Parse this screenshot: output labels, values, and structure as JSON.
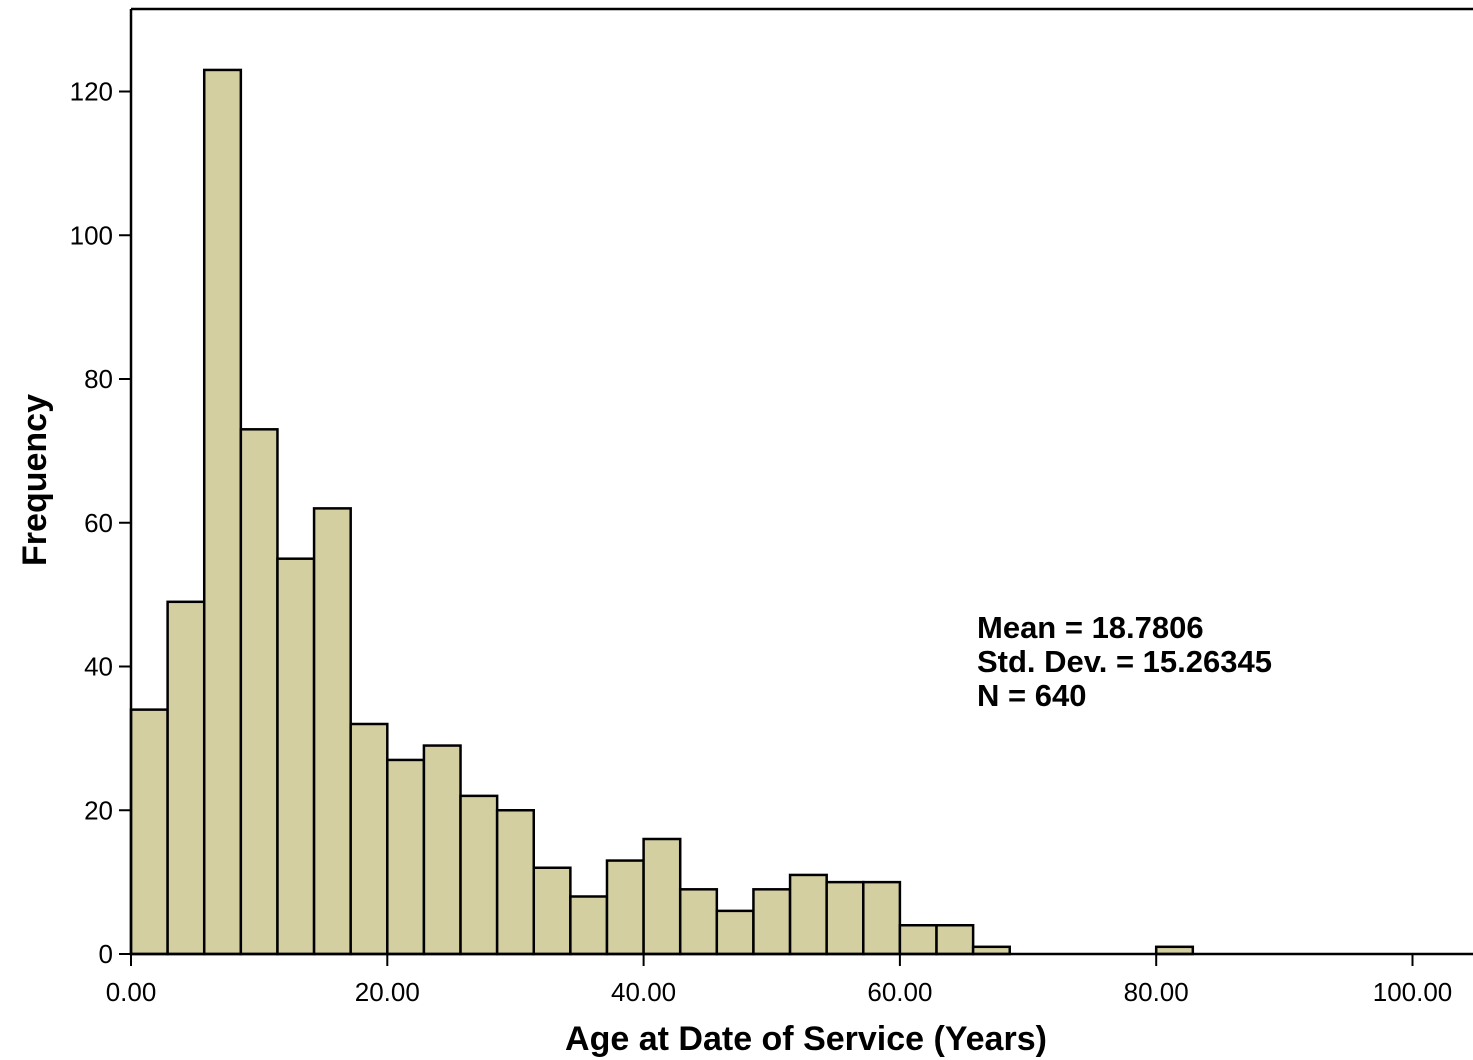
{
  "chart_data": {
    "type": "bar",
    "subtype": "histogram",
    "title": "",
    "xlabel": "Age at Date of Service (Years)",
    "ylabel": "Frequency",
    "xlim": [
      0,
      105
    ],
    "ylim": [
      0,
      130
    ],
    "x_ticks": [
      {
        "value": 0,
        "label": "0.00"
      },
      {
        "value": 20,
        "label": "20.00"
      },
      {
        "value": 40,
        "label": "40.00"
      },
      {
        "value": 60,
        "label": "60.00"
      },
      {
        "value": 80,
        "label": "80.00"
      },
      {
        "value": 100,
        "label": "100.00"
      }
    ],
    "y_ticks": [
      {
        "value": 0,
        "label": "0"
      },
      {
        "value": 20,
        "label": "20"
      },
      {
        "value": 40,
        "label": "40"
      },
      {
        "value": 60,
        "label": "60"
      },
      {
        "value": 80,
        "label": "80"
      },
      {
        "value": 100,
        "label": "100"
      },
      {
        "value": 120,
        "label": "120"
      }
    ],
    "bin_width": 2.857,
    "bins": [
      {
        "start": 0.0,
        "count": 34
      },
      {
        "start": 2.857,
        "count": 49
      },
      {
        "start": 5.714,
        "count": 123
      },
      {
        "start": 8.571,
        "count": 73
      },
      {
        "start": 11.429,
        "count": 55
      },
      {
        "start": 14.286,
        "count": 62
      },
      {
        "start": 17.143,
        "count": 32
      },
      {
        "start": 20.0,
        "count": 27
      },
      {
        "start": 22.857,
        "count": 29
      },
      {
        "start": 25.714,
        "count": 22
      },
      {
        "start": 28.571,
        "count": 20
      },
      {
        "start": 31.429,
        "count": 12
      },
      {
        "start": 34.286,
        "count": 8
      },
      {
        "start": 37.143,
        "count": 13
      },
      {
        "start": 40.0,
        "count": 16
      },
      {
        "start": 42.857,
        "count": 9
      },
      {
        "start": 45.714,
        "count": 6
      },
      {
        "start": 48.571,
        "count": 9
      },
      {
        "start": 51.429,
        "count": 11
      },
      {
        "start": 54.286,
        "count": 10
      },
      {
        "start": 57.143,
        "count": 10
      },
      {
        "start": 60.0,
        "count": 4
      },
      {
        "start": 62.857,
        "count": 4
      },
      {
        "start": 65.714,
        "count": 1
      },
      {
        "start": 80.0,
        "count": 1
      }
    ],
    "stats": {
      "mean_line": "Mean = 18.7806",
      "std_line": "Std. Dev. = 15.26345",
      "n_line": "N = 640"
    },
    "bar_color": "#d3cfa0",
    "bar_stroke": "#000000",
    "grid": false,
    "legend": "none"
  }
}
